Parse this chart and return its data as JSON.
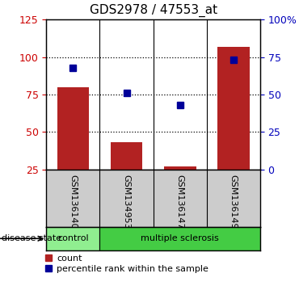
{
  "title": "GDS2978 / 47553_at",
  "samples": [
    "GSM136140",
    "GSM134953",
    "GSM136147",
    "GSM136149"
  ],
  "bar_values": [
    80,
    43,
    27,
    107
  ],
  "percentile_values": [
    68,
    51,
    43,
    73
  ],
  "bar_color": "#b22222",
  "percentile_color": "#000099",
  "left_ylim": [
    25,
    125
  ],
  "left_yticks": [
    25,
    50,
    75,
    100,
    125
  ],
  "right_ylim": [
    0,
    100
  ],
  "right_yticks": [
    0,
    25,
    50,
    75,
    100
  ],
  "right_yticklabels": [
    "0",
    "25",
    "50",
    "75",
    "100%"
  ],
  "left_tick_color": "#cc0000",
  "right_tick_color": "#0000bb",
  "disease_state_label": "disease state",
  "control_color": "#90ee90",
  "ms_color": "#44cc44",
  "bar_width": 0.6,
  "bg_color": "#cccccc",
  "dotted_lines": [
    50,
    75,
    100
  ]
}
